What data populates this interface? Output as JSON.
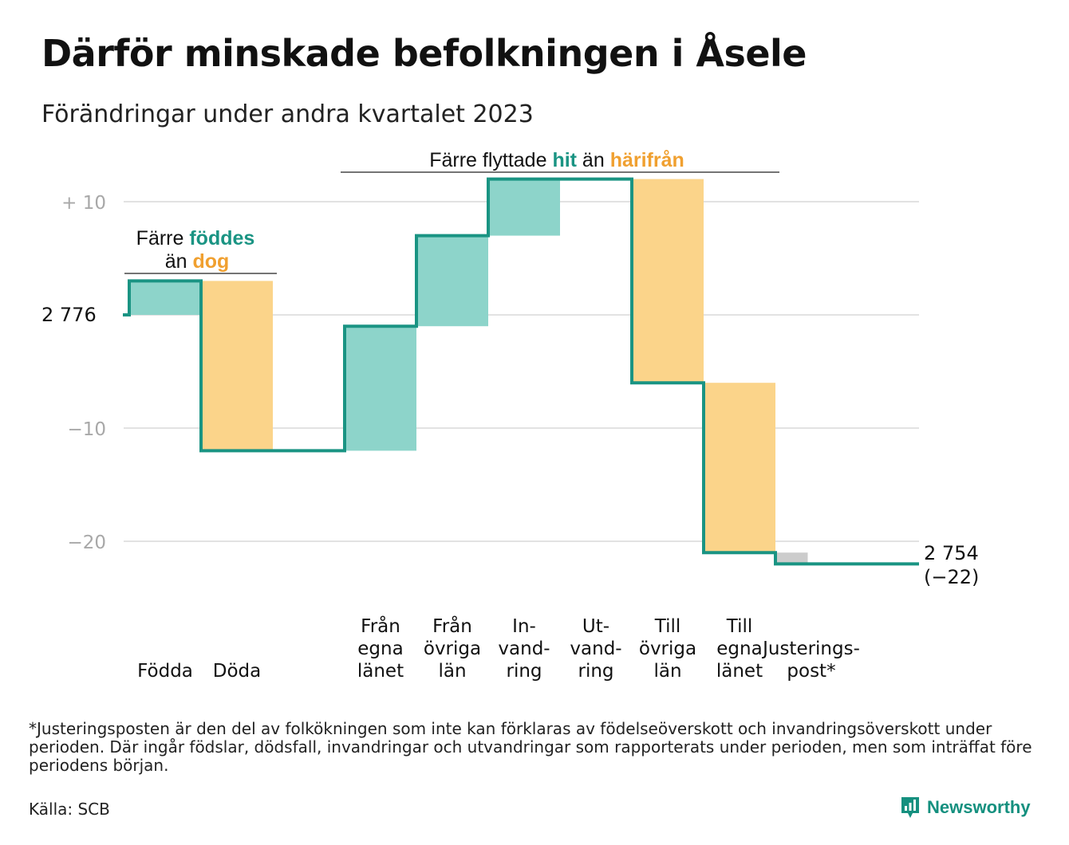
{
  "title": "Därför minskade befolkningen i Åsele",
  "subtitle": "Förändringar under andra kvartalet 2023",
  "colors": {
    "increase": "#8dd4ca",
    "decrease": "#fbd48a",
    "adjustment": "#cccccc",
    "line": "#1a9483",
    "grid": "#e2e2e2",
    "accent_orange": "#f0a030"
  },
  "annotations": {
    "births": {
      "line1_pre": "Färre",
      "line1_hi": "föddes",
      "line2_pre": "än",
      "line2_hi": "dog"
    },
    "migration": {
      "pre": "Färre flyttade",
      "hi1": "hit",
      "mid": "än",
      "hi2": "härifrån"
    }
  },
  "start_label": "2  776",
  "end_label": {
    "value": "2 754",
    "change": "(−22)"
  },
  "chart_data": {
    "type": "bar",
    "title": "Därför minskade befolkningen i Åsele",
    "subtitle": "Förändringar under andra kvartalet 2023",
    "chart_subtype": "waterfall",
    "start_value": 2776,
    "end_value": 2754,
    "total_change": -22,
    "ylim": [
      -26,
      14
    ],
    "yticks": [
      {
        "value": 10,
        "label": "+  10"
      },
      {
        "value": 0,
        "label": ""
      },
      {
        "value": -10,
        "label": "−10"
      },
      {
        "value": -20,
        "label": "−20"
      }
    ],
    "grid": true,
    "categories": [
      {
        "id": "fodda",
        "label": [
          "",
          "",
          "Födda"
        ],
        "value": 3,
        "kind": "increase"
      },
      {
        "id": "doda",
        "label": [
          "",
          "",
          "Döda"
        ],
        "value": -15,
        "kind": "decrease"
      },
      {
        "id": "gap",
        "label": [
          "",
          "",
          ""
        ],
        "value": 0,
        "kind": "none"
      },
      {
        "id": "fran_egna",
        "label": [
          "Från",
          "egna",
          "länet"
        ],
        "value": 11,
        "kind": "increase"
      },
      {
        "id": "fran_ovriga",
        "label": [
          "Från",
          "övriga",
          "län"
        ],
        "value": 8,
        "kind": "increase"
      },
      {
        "id": "invandring",
        "label": [
          "In-",
          "vand-",
          "ring"
        ],
        "value": 5,
        "kind": "increase"
      },
      {
        "id": "utvandring",
        "label": [
          "Ut-",
          "vand-",
          "ring"
        ],
        "value": 0,
        "kind": "decrease"
      },
      {
        "id": "till_ovriga",
        "label": [
          "Till",
          "övriga",
          "län"
        ],
        "value": -18,
        "kind": "decrease"
      },
      {
        "id": "till_egna",
        "label": [
          "Till",
          "egna",
          "länet"
        ],
        "value": -15,
        "kind": "decrease"
      },
      {
        "id": "justering",
        "label": [
          "",
          "Justerings-",
          "post*"
        ],
        "value": -1,
        "kind": "adjustment"
      }
    ]
  },
  "footnote": "*Justeringsposten är den del av folkökningen som inte kan förklaras av födelseöverskott och invandringsöverskott under perioden. Där ingår födslar, dödsfall, invandringar och utvandringar som rapporterats under perioden, men som inträffat före periodens början.",
  "source": "Källa: SCB",
  "brand": {
    "name": "Newsworthy",
    "icon": "bar-chart-pin-icon"
  }
}
